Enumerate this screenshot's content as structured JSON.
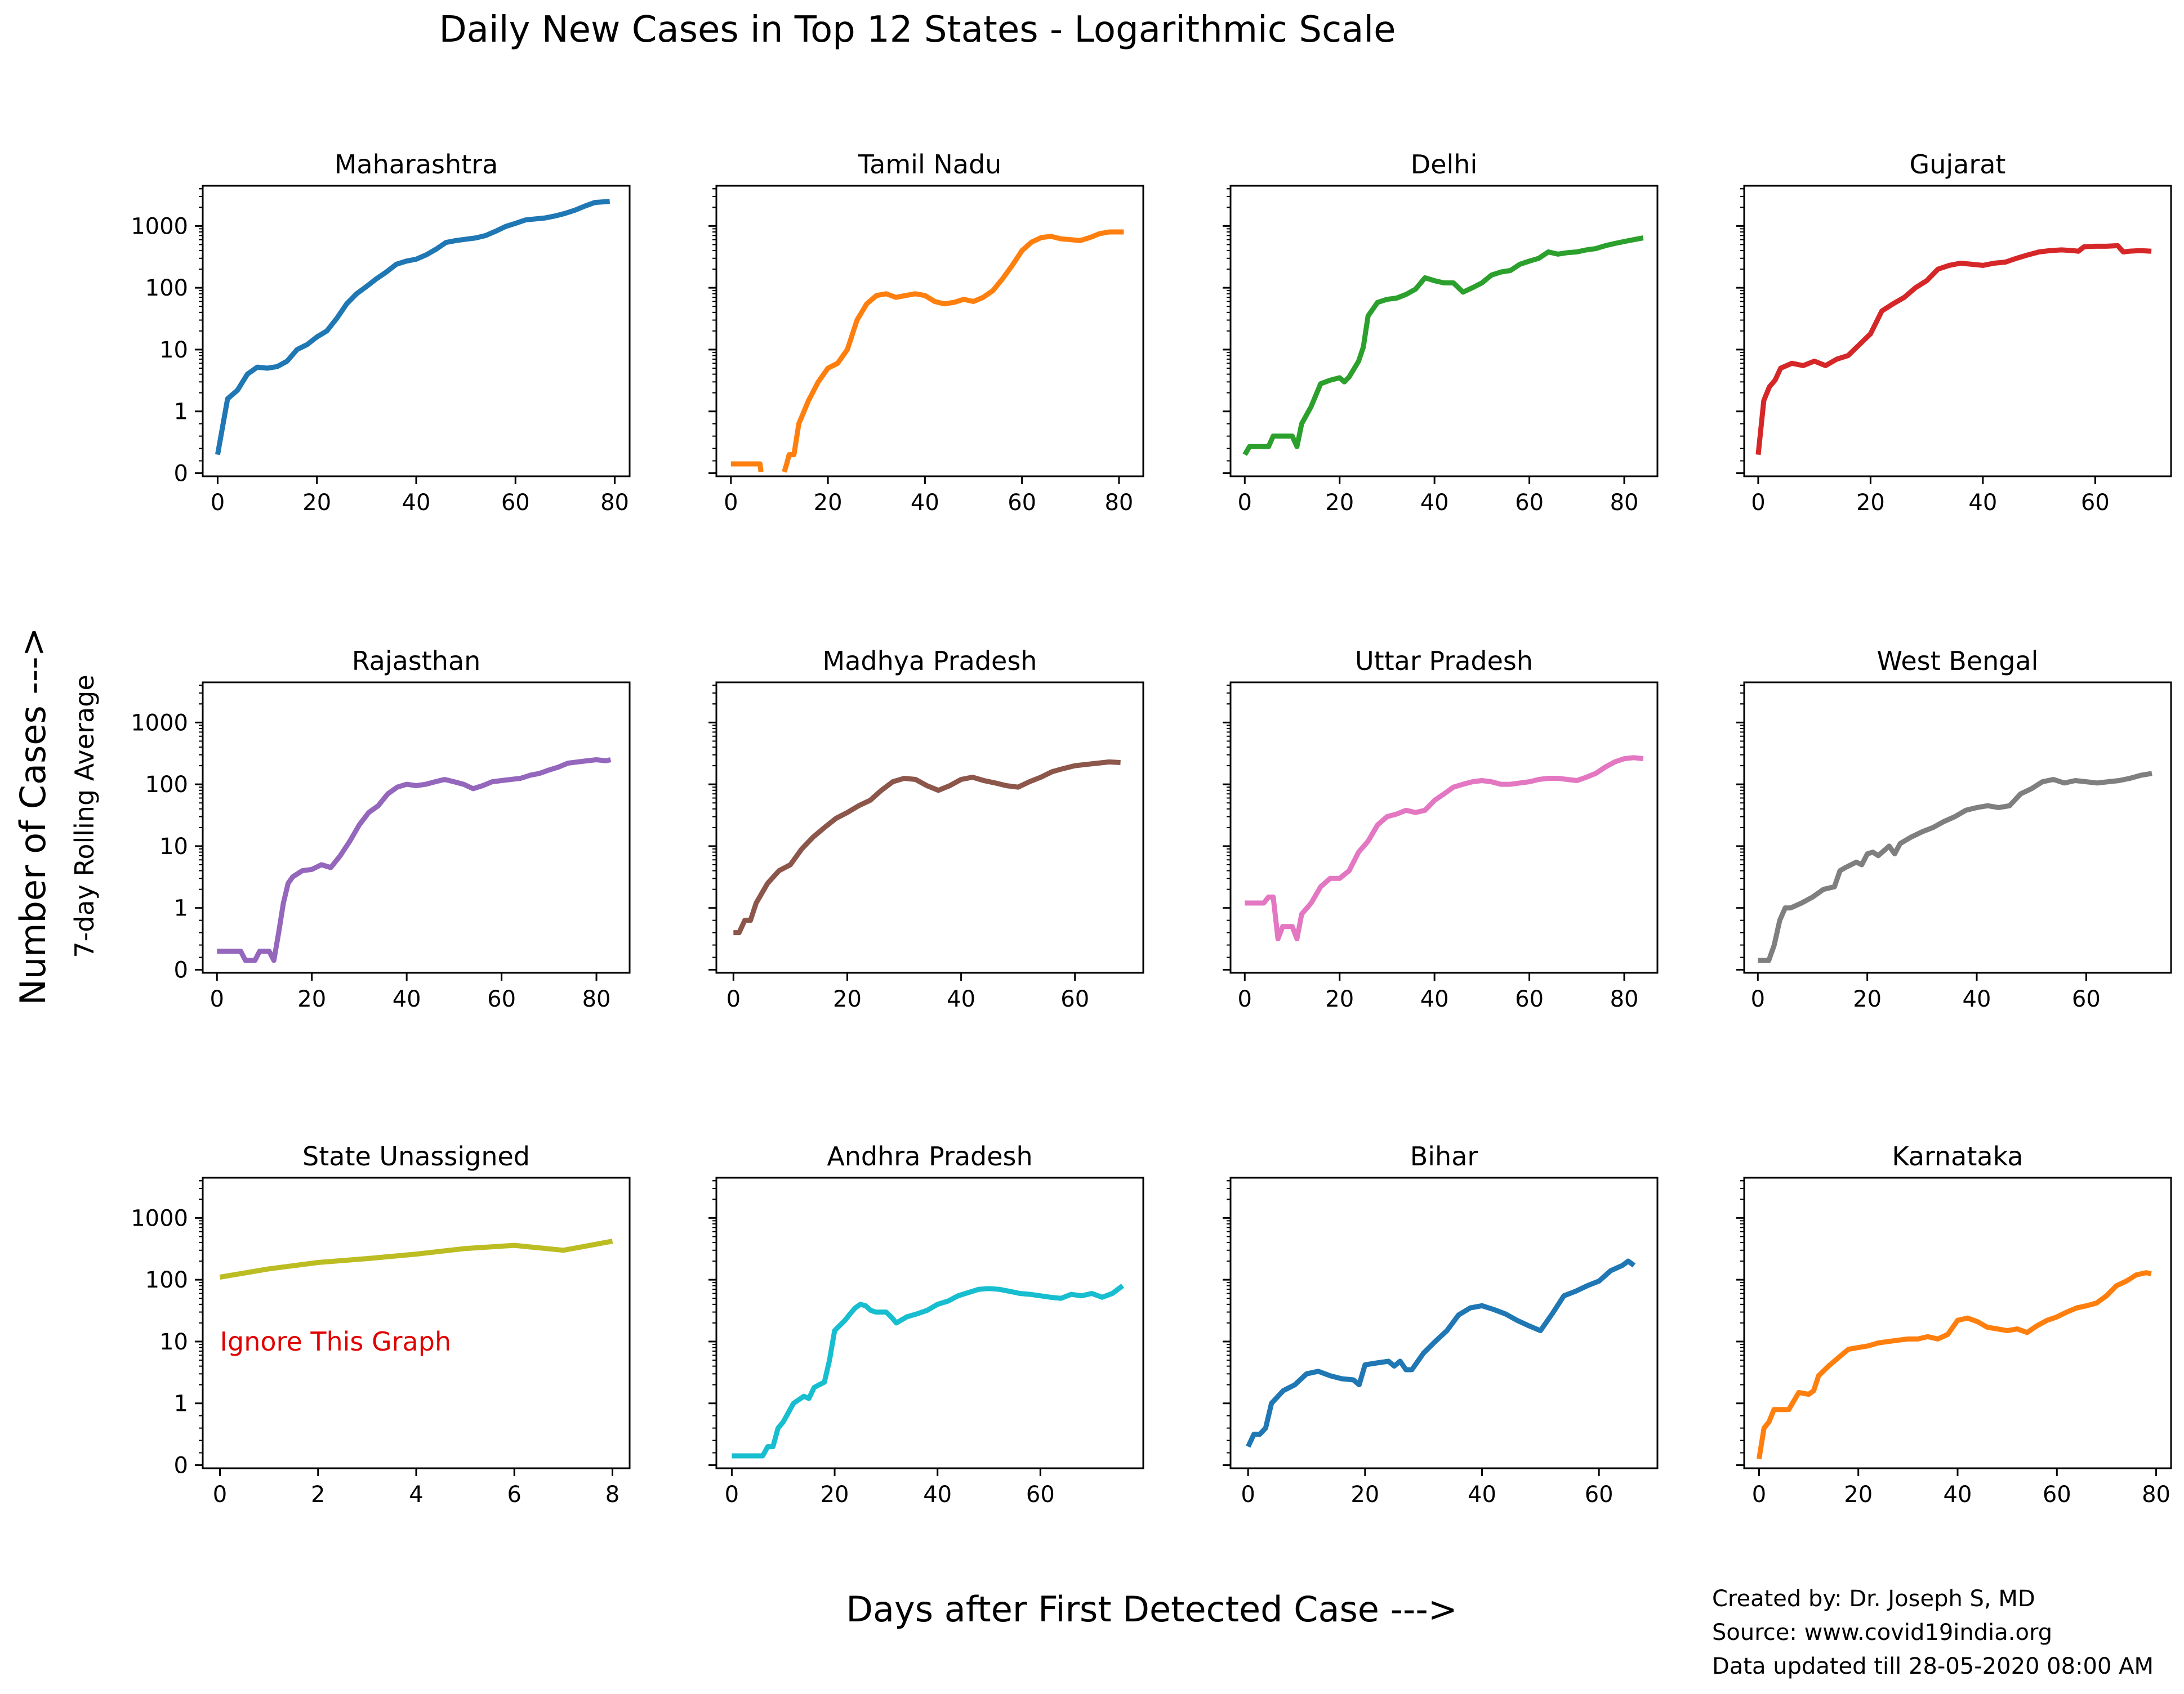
{
  "title": "Daily New Cases in Top 12 States - Logarithmic Scale",
  "ylabel": "Number of Cases --->",
  "ylabel_secondary": "7-day Rolling Average",
  "xlabel": "Days after First Detected Case --->",
  "footer": {
    "created_by": "Created by: Dr. Joseph S, MD",
    "source": "Source: www.covid19india.org",
    "updated": "Data updated till 28-05-2020 08:00 AM"
  },
  "chart_data": [
    {
      "type": "line",
      "title": "Maharashtra",
      "color": "#1f77b4",
      "yscale": "log",
      "yticks": [
        "0",
        "1",
        "10",
        "100",
        "1000"
      ],
      "xticks": [
        0,
        20,
        40,
        60,
        80
      ],
      "xlim": [
        -3,
        83
      ],
      "x": [
        0,
        2,
        4,
        6,
        8,
        10,
        12,
        14,
        16,
        18,
        20,
        22,
        24,
        26,
        28,
        30,
        32,
        34,
        36,
        38,
        40,
        42,
        44,
        46,
        48,
        50,
        52,
        54,
        56,
        58,
        60,
        62,
        64,
        66,
        68,
        70,
        72,
        74,
        76,
        79
      ],
      "y": [
        0.3,
        1.6,
        2.2,
        4.0,
        5.2,
        5.0,
        5.3,
        6.5,
        10,
        12,
        16,
        20,
        32,
        55,
        80,
        105,
        140,
        180,
        240,
        270,
        290,
        340,
        420,
        540,
        580,
        610,
        640,
        700,
        820,
        980,
        1100,
        1250,
        1300,
        1350,
        1450,
        1600,
        1800,
        2100,
        2400,
        2500
      ]
    },
    {
      "type": "line",
      "title": "Tamil Nadu",
      "color": "#ff7f0e",
      "yscale": "log",
      "yticks": [
        "0",
        "1",
        "10",
        "100",
        "1000"
      ],
      "xticks": [
        0,
        20,
        40,
        60,
        80
      ],
      "xlim": [
        -3,
        85
      ],
      "x": [
        0,
        2,
        4,
        6,
        6.2,
        null,
        11,
        11.5,
        12,
        13,
        14,
        16,
        18,
        20,
        22,
        24,
        26,
        28,
        30,
        32,
        34,
        36,
        38,
        40,
        42,
        44,
        46,
        48,
        50,
        52,
        54,
        56,
        58,
        60,
        62,
        64,
        66,
        68,
        70,
        72,
        74,
        76,
        78,
        81
      ],
      "y": [
        0.15,
        0.15,
        0.15,
        0.15,
        0.02,
        null,
        0.02,
        0.15,
        0.3,
        0.3,
        0.8,
        1.5,
        3,
        5,
        6,
        10,
        30,
        55,
        75,
        80,
        70,
        75,
        80,
        75,
        60,
        55,
        58,
        65,
        60,
        70,
        90,
        140,
        230,
        400,
        550,
        650,
        680,
        620,
        600,
        580,
        650,
        750,
        800,
        800
      ]
    },
    {
      "type": "line",
      "title": "Delhi",
      "color": "#2ca02c",
      "yscale": "log",
      "yticks": [
        "0",
        "1",
        "10",
        "100",
        "1000"
      ],
      "xticks": [
        0,
        20,
        40,
        60,
        80
      ],
      "xlim": [
        -3,
        87
      ],
      "x": [
        0,
        1,
        3,
        5,
        6,
        8,
        10,
        11,
        12,
        14,
        16,
        18,
        20,
        21,
        22,
        24,
        25,
        26,
        28,
        30,
        32,
        34,
        36,
        38,
        40,
        42,
        44,
        46,
        48,
        50,
        52,
        54,
        56,
        58,
        60,
        62,
        64,
        66,
        68,
        70,
        72,
        74,
        76,
        78,
        80,
        82,
        84
      ],
      "y": [
        0.3,
        0.43,
        0.43,
        0.43,
        0.6,
        0.6,
        0.6,
        0.43,
        0.8,
        1.2,
        2.8,
        3.2,
        3.5,
        3.0,
        3.6,
        6.5,
        11,
        35,
        58,
        65,
        68,
        78,
        95,
        145,
        130,
        120,
        120,
        85,
        100,
        120,
        160,
        180,
        190,
        240,
        270,
        300,
        380,
        350,
        370,
        380,
        410,
        430,
        480,
        520,
        560,
        600,
        640
      ]
    },
    {
      "type": "line",
      "title": "Gujarat",
      "color": "#d62728",
      "yscale": "log",
      "yticks": [
        "0",
        "1",
        "10",
        "100",
        "1000"
      ],
      "xticks": [
        0,
        20,
        40,
        60
      ],
      "xlim": [
        -2.5,
        73.5
      ],
      "x": [
        0,
        1,
        2,
        3,
        4,
        6,
        8,
        10,
        12,
        14,
        16,
        18,
        20,
        22,
        24,
        26,
        28,
        30,
        32,
        34,
        36,
        38,
        40,
        42,
        44,
        46,
        48,
        50,
        52,
        54,
        56,
        57,
        58,
        60,
        62,
        64,
        65,
        66,
        68,
        70
      ],
      "y": [
        0.3,
        1.5,
        2.5,
        3.2,
        5,
        6,
        5.5,
        6.5,
        5.5,
        7,
        8,
        12,
        18,
        42,
        55,
        70,
        100,
        130,
        200,
        230,
        250,
        240,
        230,
        250,
        260,
        300,
        340,
        380,
        400,
        410,
        400,
        390,
        460,
        470,
        470,
        480,
        380,
        390,
        400,
        390
      ]
    },
    {
      "type": "line",
      "title": "Rajasthan",
      "color": "#9467bd",
      "yscale": "log",
      "yticks": [
        "0",
        "1",
        "10",
        "100",
        "1000"
      ],
      "xticks": [
        0,
        20,
        40,
        60,
        80
      ],
      "xlim": [
        -3,
        87
      ],
      "x": [
        0,
        2,
        4,
        5,
        6,
        7,
        8,
        9,
        10,
        11,
        12,
        13,
        14,
        15,
        16,
        18,
        20,
        22,
        24,
        26,
        28,
        30,
        32,
        34,
        36,
        38,
        40,
        42,
        44,
        46,
        48,
        50,
        52,
        54,
        56,
        58,
        60,
        62,
        64,
        66,
        68,
        70,
        72,
        74,
        76,
        78,
        80,
        82,
        83
      ],
      "y": [
        0.3,
        0.3,
        0.3,
        0.3,
        0.15,
        0.15,
        0.15,
        0.3,
        0.3,
        0.3,
        0.15,
        0.6,
        1.2,
        2.5,
        3.2,
        4,
        4.2,
        5,
        4.5,
        7,
        12,
        22,
        35,
        45,
        70,
        90,
        100,
        95,
        100,
        110,
        120,
        110,
        100,
        85,
        95,
        110,
        115,
        120,
        125,
        140,
        150,
        170,
        190,
        220,
        230,
        240,
        250,
        240,
        250
      ]
    },
    {
      "type": "line",
      "title": "Madhya Pradesh",
      "color": "#8c564b",
      "yscale": "log",
      "yticks": [
        "0",
        "1",
        "10",
        "100",
        "1000"
      ],
      "xticks": [
        0,
        20,
        40,
        60
      ],
      "xlim": [
        -3,
        72
      ],
      "x": [
        0,
        1,
        2,
        3,
        4,
        6,
        8,
        10,
        12,
        14,
        16,
        18,
        20,
        22,
        24,
        26,
        28,
        30,
        32,
        34,
        36,
        38,
        40,
        42,
        44,
        46,
        48,
        50,
        52,
        54,
        56,
        58,
        60,
        62,
        64,
        66,
        68
      ],
      "y": [
        0.6,
        0.6,
        0.8,
        0.8,
        1.2,
        2.5,
        4,
        5,
        9,
        14,
        20,
        28,
        35,
        45,
        55,
        80,
        110,
        125,
        120,
        95,
        80,
        95,
        120,
        130,
        115,
        105,
        95,
        90,
        110,
        130,
        160,
        180,
        200,
        210,
        220,
        230,
        225
      ]
    },
    {
      "type": "line",
      "title": "Uttar Pradesh",
      "color": "#e377c2",
      "yscale": "log",
      "yticks": [
        "0",
        "1",
        "10",
        "100",
        "1000"
      ],
      "xticks": [
        0,
        20,
        40,
        60,
        80
      ],
      "xlim": [
        -3,
        87
      ],
      "x": [
        0,
        2,
        4,
        5,
        6,
        7,
        8,
        10,
        11,
        12,
        14,
        16,
        18,
        20,
        22,
        24,
        26,
        28,
        30,
        32,
        34,
        36,
        38,
        40,
        42,
        44,
        46,
        48,
        50,
        52,
        54,
        56,
        58,
        60,
        62,
        64,
        66,
        68,
        70,
        72,
        74,
        76,
        78,
        80,
        82,
        84
      ],
      "y": [
        1.2,
        1.2,
        1.2,
        1.5,
        1.5,
        0.5,
        0.7,
        0.7,
        0.5,
        0.9,
        1.2,
        2.2,
        3,
        3,
        4,
        8,
        12,
        22,
        30,
        33,
        38,
        35,
        38,
        55,
        70,
        90,
        100,
        110,
        115,
        110,
        100,
        100,
        105,
        110,
        120,
        125,
        125,
        120,
        115,
        130,
        150,
        190,
        230,
        260,
        270,
        260
      ]
    },
    {
      "type": "line",
      "title": "West Bengal",
      "color": "#7f7f7f",
      "yscale": "log",
      "yticks": [
        "0",
        "1",
        "10",
        "100",
        "1000"
      ],
      "xticks": [
        0,
        20,
        40,
        60
      ],
      "xlim": [
        -2.5,
        75.5
      ],
      "x": [
        0,
        2,
        3,
        4,
        5,
        6,
        8,
        10,
        12,
        14,
        15,
        16,
        18,
        19,
        20,
        21,
        22,
        24,
        25,
        26,
        28,
        30,
        32,
        34,
        36,
        38,
        40,
        42,
        44,
        46,
        48,
        50,
        52,
        54,
        56,
        58,
        60,
        62,
        64,
        66,
        68,
        70,
        72
      ],
      "y": [
        0.15,
        0.15,
        0.4,
        0.8,
        1.0,
        1.0,
        1.2,
        1.5,
        2.0,
        2.2,
        4,
        4.5,
        5.5,
        5,
        7.5,
        8,
        7,
        10,
        7.5,
        11,
        14,
        17,
        20,
        25,
        30,
        38,
        42,
        45,
        42,
        45,
        70,
        85,
        110,
        120,
        105,
        115,
        110,
        105,
        110,
        115,
        125,
        140,
        150
      ]
    },
    {
      "type": "line",
      "title": "State Unassigned",
      "color": "#bcbd22",
      "yscale": "log",
      "yticks": [
        "0",
        "1",
        "10",
        "100",
        "1000"
      ],
      "xticks": [
        0,
        2,
        4,
        6,
        8
      ],
      "xlim": [
        -0.35,
        8.35
      ],
      "x": [
        0,
        1,
        2,
        3,
        4,
        5,
        6,
        7,
        8
      ],
      "y": [
        110,
        150,
        190,
        220,
        260,
        320,
        360,
        300,
        420
      ],
      "annotation": "Ignore This Graph"
    },
    {
      "type": "line",
      "title": "Andhra Pradesh",
      "color": "#17becf",
      "yscale": "log",
      "yticks": [
        "0",
        "1",
        "10",
        "100",
        "1000"
      ],
      "xticks": [
        0,
        20,
        40,
        60
      ],
      "xlim": [
        -3,
        80
      ],
      "x": [
        0,
        2,
        4,
        6,
        7,
        8,
        9,
        10,
        12,
        14,
        15,
        16,
        17,
        18,
        19,
        20,
        22,
        23,
        24,
        25,
        26,
        27,
        28,
        30,
        31,
        32,
        34,
        36,
        38,
        40,
        42,
        44,
        46,
        48,
        50,
        52,
        54,
        56,
        58,
        60,
        62,
        64,
        66,
        68,
        70,
        72,
        74,
        76
      ],
      "y": [
        0.15,
        0.15,
        0.15,
        0.15,
        0.3,
        0.3,
        0.6,
        0.7,
        1.0,
        1.3,
        1.2,
        1.8,
        2.0,
        2.2,
        5,
        15,
        22,
        28,
        35,
        40,
        38,
        32,
        30,
        30,
        25,
        20,
        25,
        28,
        32,
        40,
        45,
        55,
        62,
        70,
        72,
        70,
        65,
        60,
        58,
        55,
        52,
        50,
        58,
        55,
        60,
        52,
        60,
        80
      ]
    },
    {
      "type": "line",
      "title": "Bihar",
      "color": "#1f77b4",
      "yscale": "log",
      "yticks": [
        "0",
        "1",
        "10",
        "100",
        "1000"
      ],
      "xticks": [
        0,
        20,
        40,
        60
      ],
      "xlim": [
        -3,
        70
      ],
      "x": [
        0,
        1,
        2,
        3,
        4,
        6,
        8,
        10,
        12,
        14,
        16,
        18,
        19,
        20,
        22,
        24,
        25,
        26,
        27,
        28,
        30,
        32,
        34,
        36,
        38,
        40,
        42,
        44,
        46,
        48,
        50,
        52,
        54,
        56,
        58,
        60,
        62,
        64,
        65,
        66
      ],
      "y": [
        0.3,
        0.5,
        0.5,
        0.6,
        1.0,
        1.6,
        2.0,
        3.0,
        3.3,
        2.8,
        2.5,
        2.4,
        2.0,
        4.2,
        4.5,
        4.8,
        4.0,
        4.8,
        3.5,
        3.5,
        6.5,
        10,
        15,
        27,
        35,
        38,
        33,
        28,
        22,
        18,
        15,
        28,
        55,
        65,
        80,
        95,
        140,
        170,
        200,
        170
      ]
    },
    {
      "type": "line",
      "title": "Karnataka",
      "color": "#ff7f0e",
      "yscale": "log",
      "yticks": [
        "0",
        "1",
        "10",
        "100",
        "1000"
      ],
      "xticks": [
        0,
        20,
        40,
        60,
        80
      ],
      "xlim": [
        -3,
        83
      ],
      "x": [
        0,
        1,
        2,
        3,
        4,
        6,
        8,
        10,
        11,
        12,
        14,
        16,
        18,
        20,
        22,
        24,
        26,
        28,
        30,
        32,
        34,
        36,
        38,
        40,
        42,
        44,
        46,
        48,
        50,
        52,
        54,
        56,
        58,
        60,
        62,
        64,
        66,
        68,
        70,
        72,
        74,
        76,
        78,
        79
      ],
      "y": [
        0.1,
        0.6,
        0.7,
        0.9,
        0.9,
        0.9,
        1.5,
        1.4,
        1.6,
        2.8,
        4,
        5.5,
        7.5,
        8,
        8.5,
        9.5,
        10,
        10.5,
        11,
        11,
        12,
        11,
        13,
        22,
        24,
        21,
        17,
        16,
        15,
        16,
        14,
        18,
        22,
        25,
        30,
        35,
        38,
        42,
        55,
        80,
        95,
        120,
        130,
        125
      ]
    }
  ]
}
